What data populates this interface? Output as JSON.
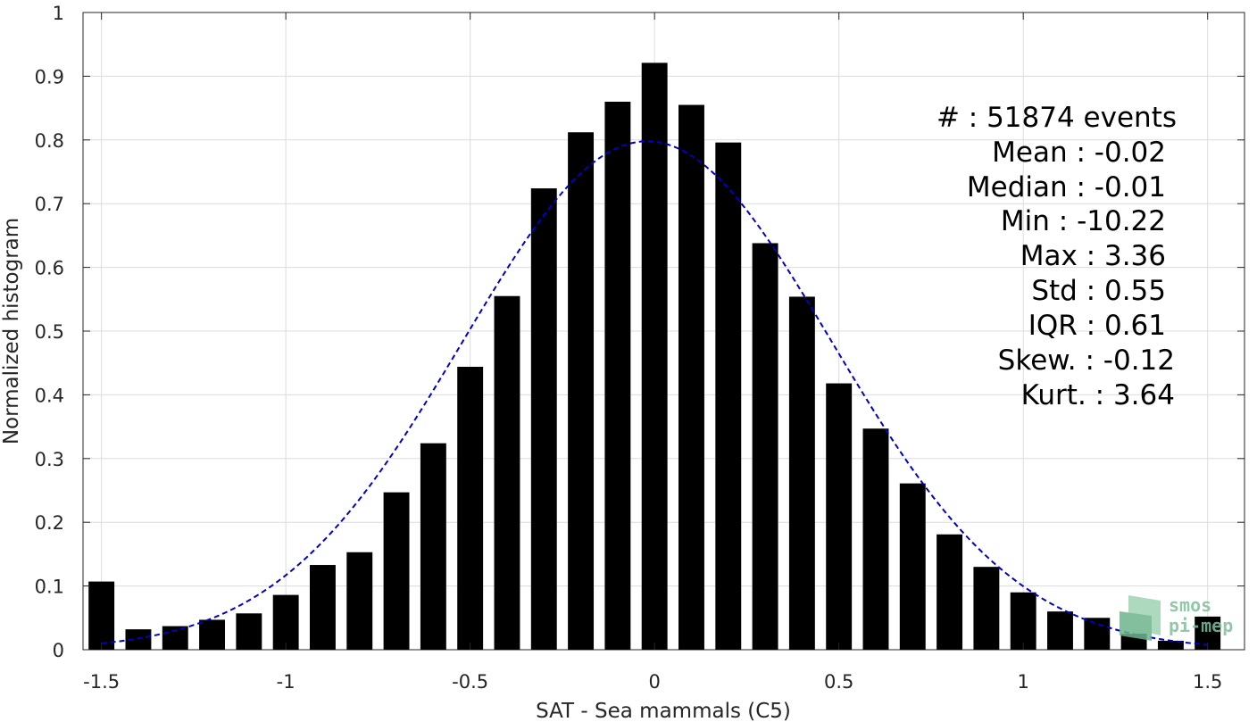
{
  "chart_data": {
    "type": "bar",
    "xlabel": "SAT - Sea mammals (C5)",
    "ylabel": "Normalized histogram",
    "xlim": [
      -1.55,
      1.6
    ],
    "ylim": [
      0,
      1
    ],
    "grid": true,
    "xticks": [
      -1.5,
      -1,
      -0.5,
      0,
      0.5,
      1,
      1.5
    ],
    "xtick_labels": [
      "-1.5",
      "-1",
      "-0.5",
      "0",
      "0.5",
      "1",
      "1.5"
    ],
    "yticks": [
      0,
      0.1,
      0.2,
      0.3,
      0.4,
      0.5,
      0.6,
      0.7,
      0.8,
      0.9,
      1
    ],
    "ytick_labels": [
      "0",
      "0.1",
      "0.2",
      "0.3",
      "0.4",
      "0.5",
      "0.6",
      "0.7",
      "0.8",
      "0.9",
      "1"
    ],
    "bar_width": 0.07,
    "bar_color": "#000000",
    "bars": {
      "x": [
        -1.5,
        -1.4,
        -1.3,
        -1.2,
        -1.1,
        -1.0,
        -0.9,
        -0.8,
        -0.7,
        -0.6,
        -0.5,
        -0.4,
        -0.3,
        -0.2,
        -0.1,
        0.0,
        0.1,
        0.2,
        0.3,
        0.4,
        0.5,
        0.6,
        0.7,
        0.8,
        0.9,
        1.0,
        1.1,
        1.2,
        1.3,
        1.4,
        1.5
      ],
      "values": [
        0.107,
        0.032,
        0.037,
        0.047,
        0.057,
        0.086,
        0.133,
        0.153,
        0.247,
        0.324,
        0.444,
        0.555,
        0.724,
        0.812,
        0.86,
        0.921,
        0.855,
        0.796,
        0.638,
        0.554,
        0.418,
        0.347,
        0.261,
        0.181,
        0.13,
        0.09,
        0.06,
        0.05,
        0.025,
        0.014,
        0.052
      ]
    },
    "fit_curve": {
      "style": "dashed",
      "color": "#0000cc",
      "mean": -0.02,
      "std": 0.5,
      "x_range": [
        -1.5,
        1.5
      ]
    },
    "annotations": [
      {
        "label": "#  : 51874 events"
      },
      {
        "label": "Mean : -0.02"
      },
      {
        "label": "Median : -0.01"
      },
      {
        "label": "Min : -10.22"
      },
      {
        "label": "Max : 3.36"
      },
      {
        "label": "Std : 0.55"
      },
      {
        "label": "IQR : 0.61"
      },
      {
        "label": "Skew. : -0.12"
      },
      {
        "label": "Kurt. : 3.64"
      }
    ]
  },
  "logo": {
    "line1": "smos",
    "line2": "pi-mep",
    "color": "#7fbf9b"
  }
}
